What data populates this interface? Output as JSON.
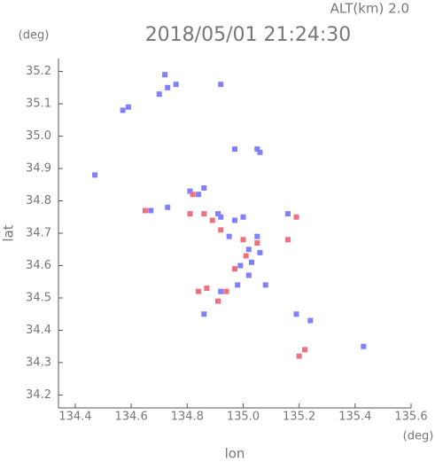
{
  "chart_data": {
    "type": "scatter",
    "corner_label": "ALT(km) 2.0",
    "title": "2018/05/01 21:24:30",
    "x_label": "lon",
    "y_label": "lat",
    "x_unit": "(deg)",
    "y_unit": "(deg)",
    "xlim": [
      134.34,
      135.6
    ],
    "xticks": [
      134.4,
      134.6,
      134.8,
      {
        "value": 135.0,
        "label": "135.0"
      },
      135.2,
      135.4,
      135.6
    ],
    "ylim": [
      34.16,
      35.24
    ],
    "yticks": [
      34.2,
      34.3,
      34.4,
      34.5,
      34.6,
      34.7,
      34.8,
      34.9,
      {
        "value": 35.0,
        "label": "35.0"
      },
      35.1,
      35.2
    ],
    "series": [
      {
        "color": "#8080ff",
        "x": [
          134.72,
          134.73,
          134.76,
          134.7,
          134.59,
          134.57,
          134.92,
          134.47,
          134.97,
          135.05,
          135.06,
          134.81,
          134.84,
          134.73,
          134.67,
          134.92,
          134.97,
          135.0,
          134.95,
          135.02,
          135.05,
          135.06,
          134.99,
          135.02,
          135.08,
          134.92,
          134.86,
          135.19,
          135.24,
          135.43,
          134.86,
          134.91,
          135.03,
          134.98,
          135.16
        ],
        "y": [
          35.19,
          35.15,
          35.16,
          35.13,
          35.09,
          35.08,
          35.16,
          34.88,
          34.96,
          34.96,
          34.95,
          34.83,
          34.82,
          34.78,
          34.77,
          34.75,
          34.74,
          34.75,
          34.69,
          34.65,
          34.69,
          34.64,
          34.6,
          34.57,
          34.54,
          34.52,
          34.45,
          34.45,
          34.43,
          34.35,
          34.84,
          34.76,
          34.61,
          34.54,
          34.76
        ]
      },
      {
        "color": "#f07080",
        "x": [
          134.65,
          134.82,
          134.86,
          134.89,
          134.81,
          134.92,
          135.0,
          135.05,
          135.19,
          135.16,
          134.87,
          134.94,
          134.91,
          135.22,
          135.2,
          135.01,
          134.97,
          134.84
        ],
        "y": [
          34.77,
          34.82,
          34.76,
          34.74,
          34.76,
          34.71,
          34.68,
          34.67,
          34.75,
          34.68,
          34.53,
          34.52,
          34.49,
          34.34,
          34.32,
          34.63,
          34.59,
          34.52
        ]
      }
    ]
  }
}
